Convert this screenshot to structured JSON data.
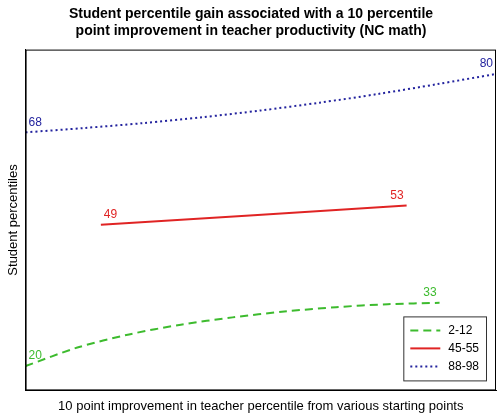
{
  "chart_data": {
    "type": "line",
    "title": [
      "Student percentile gain associated with a 10 percentile",
      "point improvement in teacher productivity (NC math)"
    ],
    "x_label": "10 point improvement in teacher percentile from various starting points",
    "y_label": "Student percentiles",
    "xlim": [
      0,
      10
    ],
    "ylim": [
      15,
      85
    ],
    "grid": false,
    "tick_labels": false,
    "legend": "lower right",
    "series": [
      {
        "name": "2-12",
        "color": "#3dbb2e",
        "line_style": "dashed",
        "x": [
          0,
          1.1,
          2.2,
          3.3,
          4.4,
          5.5,
          6.6,
          7.7,
          8.8
        ],
        "values": [
          20,
          23.8,
          26.5,
          28.5,
          30,
          31.2,
          32.1,
          32.7,
          33
        ],
        "value_labels": [
          "20",
          null,
          null,
          null,
          null,
          null,
          null,
          null,
          "33"
        ]
      },
      {
        "name": "45-55",
        "color": "#e02424",
        "line_style": "solid",
        "x": [
          1.6,
          8.1
        ],
        "values": [
          49,
          53
        ],
        "value_labels": [
          "49",
          "53"
        ]
      },
      {
        "name": "88-98",
        "color": "#23239e",
        "line_style": "dotted",
        "x": [
          0,
          1.25,
          2.5,
          3.75,
          5,
          6.25,
          7.5,
          8.75,
          10
        ],
        "values": [
          68,
          68.9,
          69.9,
          71.1,
          72.5,
          74.1,
          75.9,
          77.9,
          80
        ],
        "value_labels": [
          "68",
          null,
          null,
          null,
          null,
          null,
          null,
          null,
          "80"
        ]
      }
    ]
  }
}
